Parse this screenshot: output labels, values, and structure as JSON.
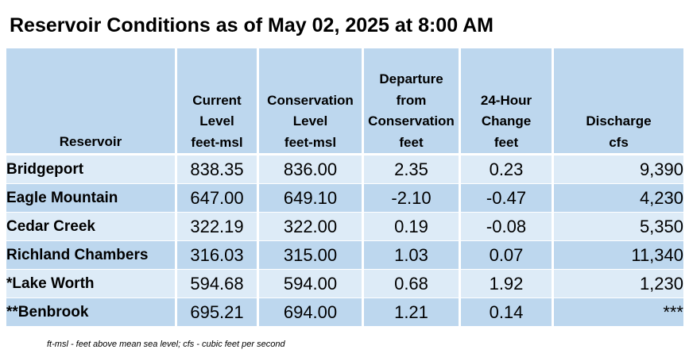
{
  "title": "Reservoir Conditions as of May 02, 2025 at 8:00 AM",
  "columns": [
    {
      "lines": [
        "Reservoir"
      ]
    },
    {
      "lines": [
        "Current",
        "Level",
        "feet-msl"
      ]
    },
    {
      "lines": [
        "Conservation",
        "Level",
        "feet-msl"
      ]
    },
    {
      "lines": [
        "Departure",
        "from",
        "Conservation",
        "feet"
      ]
    },
    {
      "lines": [
        "24-Hour",
        "Change",
        "feet"
      ]
    },
    {
      "lines": [
        "Discharge",
        "cfs"
      ]
    }
  ],
  "rows": [
    {
      "reservoir": "Bridgeport",
      "current": "838.35",
      "conservation": "836.00",
      "departure": "2.35",
      "change": "0.23",
      "discharge": "9,390"
    },
    {
      "reservoir": "Eagle Mountain",
      "current": "647.00",
      "conservation": "649.10",
      "departure": "-2.10",
      "change": "-0.47",
      "discharge": "4,230"
    },
    {
      "reservoir": "Cedar Creek",
      "current": "322.19",
      "conservation": "322.00",
      "departure": "0.19",
      "change": "-0.08",
      "discharge": "5,350"
    },
    {
      "reservoir": "Richland Chambers",
      "current": "316.03",
      "conservation": "315.00",
      "departure": "1.03",
      "change": "0.07",
      "discharge": "11,340"
    },
    {
      "reservoir": "*Lake Worth",
      "current": "594.68",
      "conservation": "594.00",
      "departure": "0.68",
      "change": "1.92",
      "discharge": "1,230"
    },
    {
      "reservoir": "**Benbrook",
      "current": "695.21",
      "conservation": "694.00",
      "departure": "1.21",
      "change": "0.14",
      "discharge": "***"
    }
  ],
  "footnote": "ft-msl - feet above mean sea level; cfs - cubic feet per second",
  "colors": {
    "header_bg": "#bdd7ee",
    "row_light": "#ddebf7",
    "row_dark": "#bdd7ee"
  }
}
